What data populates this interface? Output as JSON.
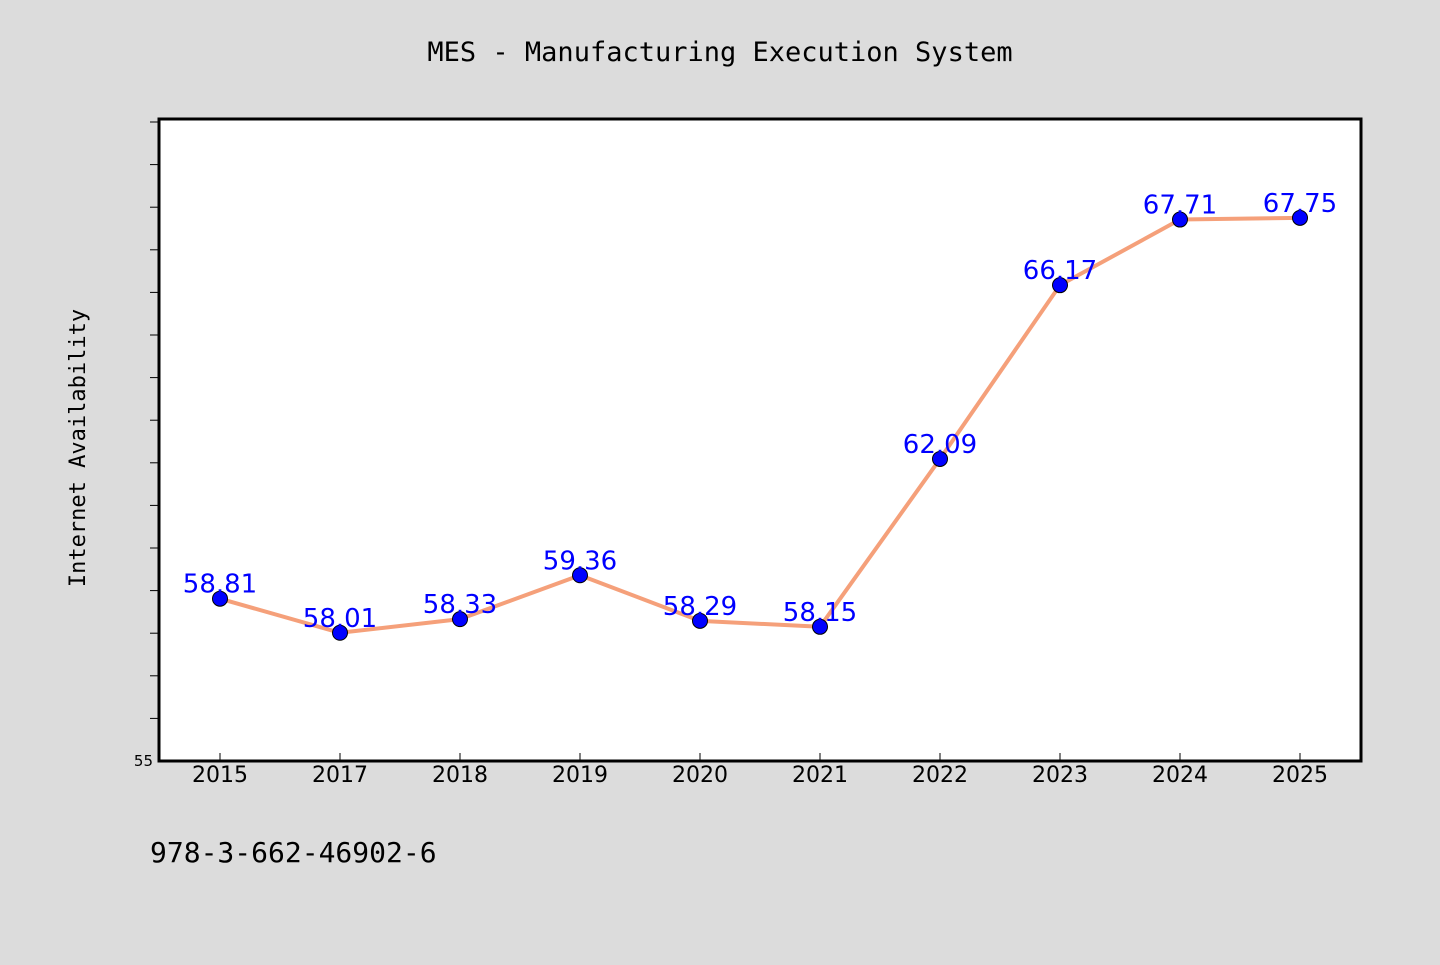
{
  "chart_data": {
    "type": "line",
    "title": "MES - Manufacturing Execution System",
    "xlabel": "",
    "ylabel": "Internet Availability",
    "categories": [
      "2015",
      "2017",
      "2018",
      "2019",
      "2020",
      "2021",
      "2022",
      "2023",
      "2024",
      "2025"
    ],
    "series": [
      {
        "values": [
          58.81,
          58.01,
          58.33,
          59.36,
          58.29,
          58.15,
          62.09,
          66.17,
          67.71,
          67.75
        ]
      }
    ],
    "ylim": [
      55,
      70
    ],
    "y_tick_labels": [
      "55"
    ],
    "grid": false,
    "line_color": "#f5a07a",
    "marker_color": "#0000ff",
    "label_color": "#0000ff",
    "background_color": "#dcdcdc",
    "plot_background": "#ffffff"
  },
  "footer": {
    "isbn": "978-3-662-46902-6"
  }
}
